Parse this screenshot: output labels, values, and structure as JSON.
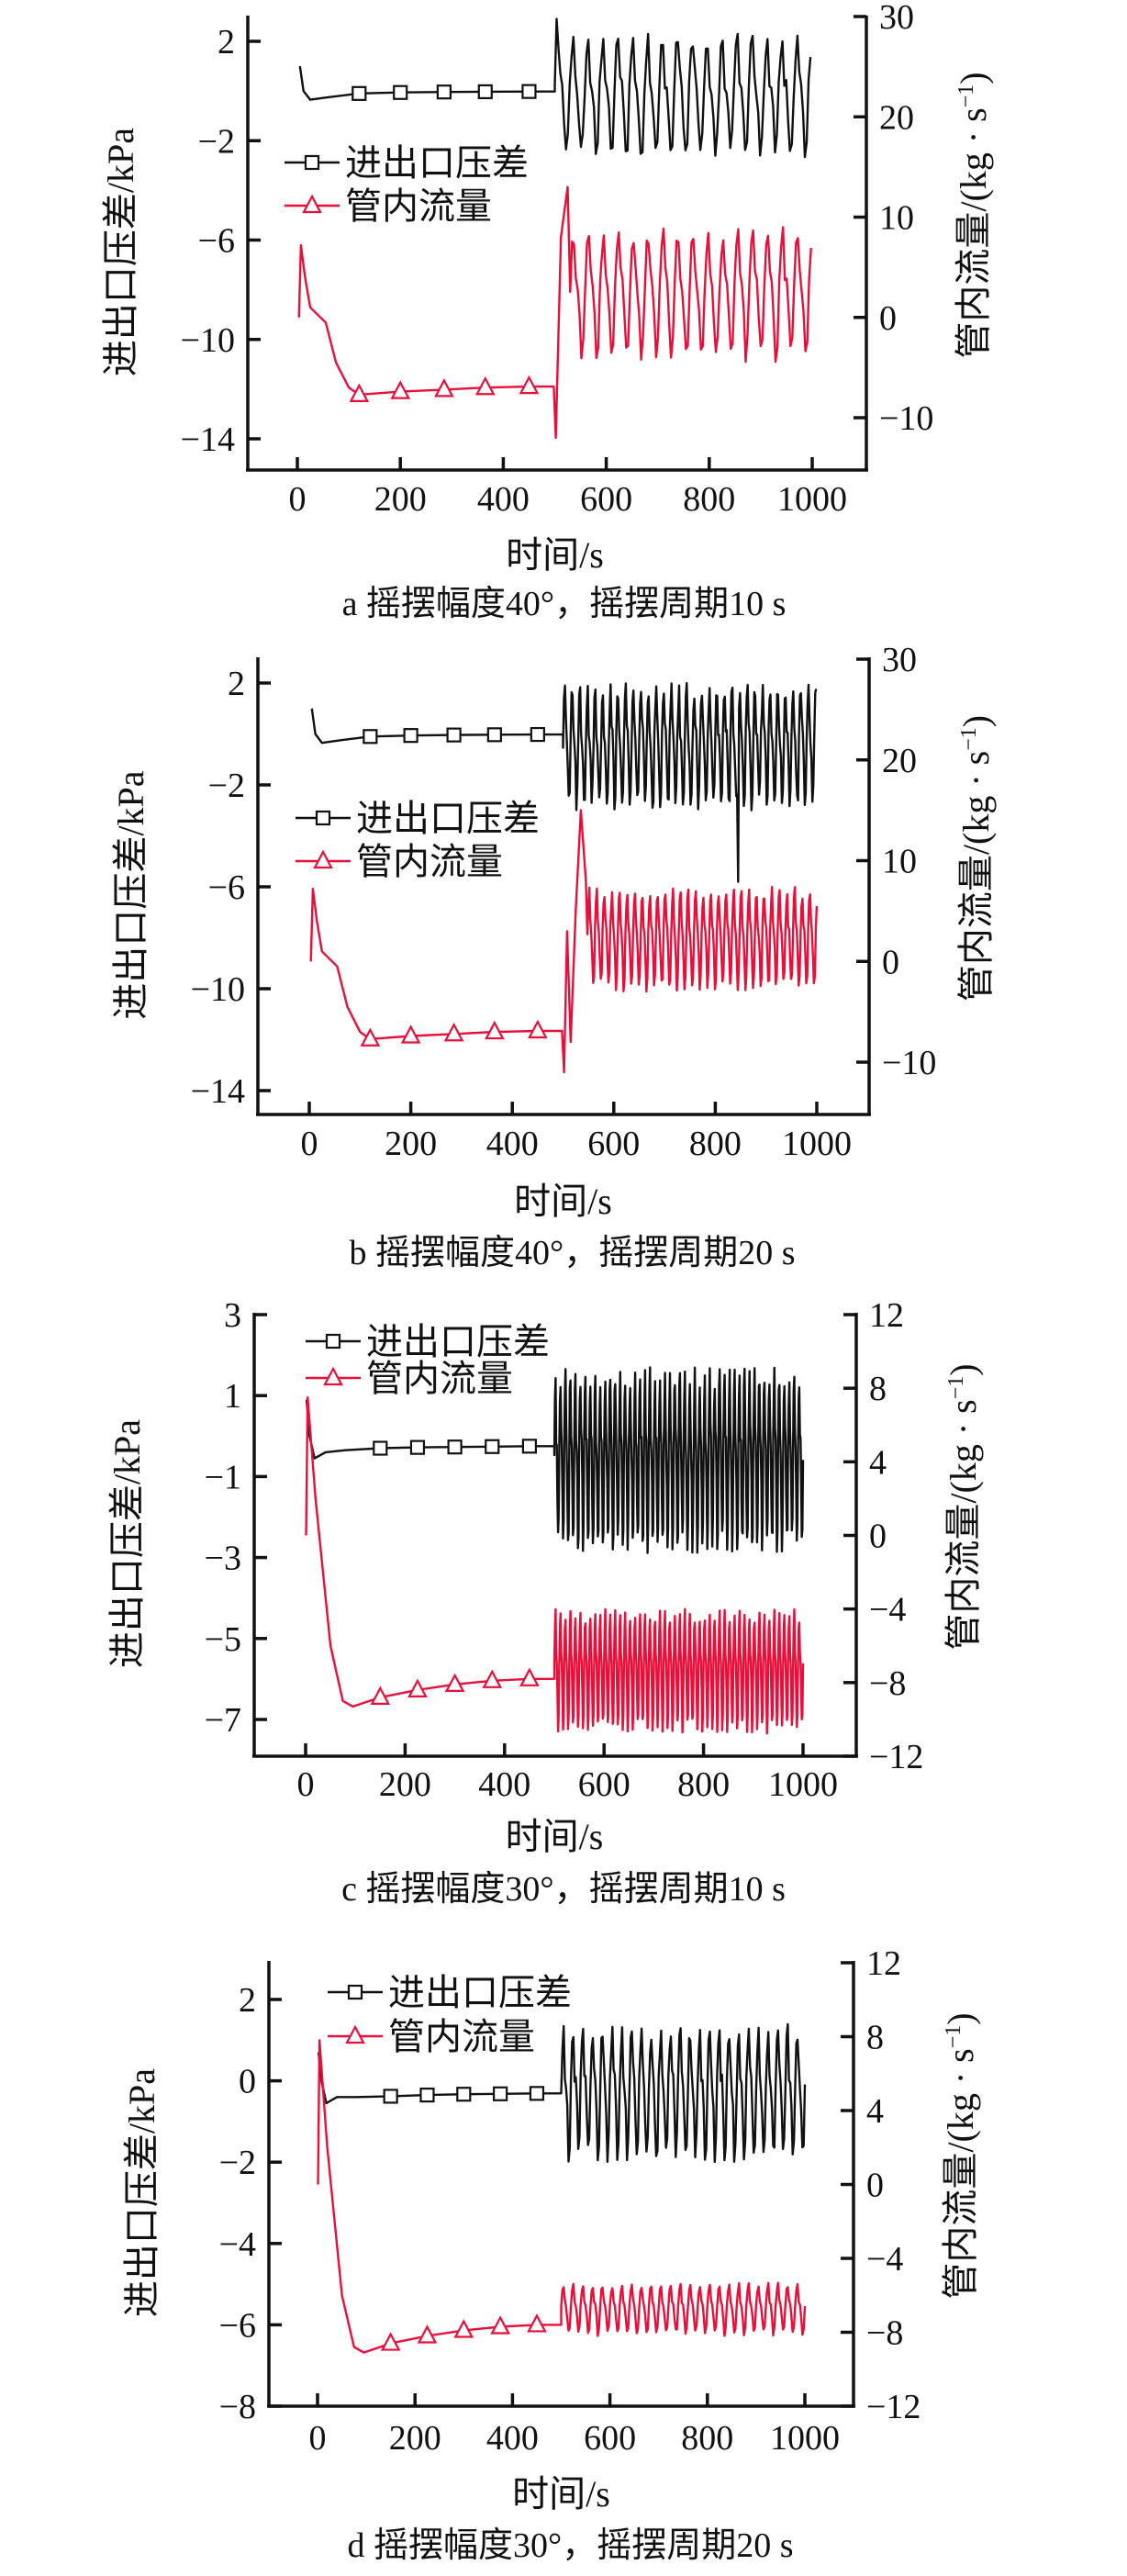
{
  "figure": {
    "series_names": {
      "pressure": "进出口压差",
      "flow": "管内流量"
    },
    "colors": {
      "pressure": "#111111",
      "flow": "#e8103a"
    },
    "left_ylabel": "进出口压差/kPa",
    "right_ylabel_main": "管内流量/(kg · s",
    "right_ylabel_sup": "−1",
    "right_ylabel_close": ")",
    "xlabel": "时间/s"
  },
  "chart_data": [
    {
      "type": "line",
      "panel": "a",
      "caption": "a  摇摆幅度40°，摇摆周期10 s",
      "xlabel": "时间/s",
      "ylabel_left": "进出口压差/kPa",
      "ylabel_right": "管内流量/(kg · s⁻¹)",
      "xlim": [
        -95,
        1110
      ],
      "x_ticks": [
        0,
        200,
        400,
        600,
        800,
        1000
      ],
      "x_tick_labels": [
        "0",
        "200",
        "400",
        "600",
        "800",
        "1000"
      ],
      "ylim_left": [
        -15,
        3
      ],
      "y_left_ticks": [
        2,
        -2,
        -6,
        -10,
        -14
      ],
      "y_left_tick_labels": [
        "2",
        "−2",
        "−6",
        "−10",
        "−14"
      ],
      "ylim_right": [
        -12,
        30
      ],
      "y_right_ticks": [
        30,
        20,
        10,
        0,
        -10
      ],
      "y_right_tick_labels": [
        "30",
        "20",
        "10",
        "0",
        "−10"
      ],
      "legend": [
        "进出口压差",
        "管内流量"
      ],
      "legend_position": "upper-left",
      "series": [
        {
          "name": "进出口压差",
          "axis": "left",
          "marker": "square",
          "steady": [
            [
              5,
              1.0
            ],
            [
              12,
              0.0
            ],
            [
              25,
              -0.35
            ],
            [
              60,
              -0.25
            ],
            [
              120,
              -0.1
            ],
            [
              200,
              -0.06
            ],
            [
              285,
              -0.04
            ],
            [
              365,
              -0.03
            ],
            [
              450,
              -0.02
            ],
            [
              500,
              -0.02
            ]
          ],
          "markers_x": [
            120,
            200,
            285,
            365,
            450
          ],
          "oscillation": {
            "start": 500,
            "end": 1000,
            "period": 29,
            "min": -2.8,
            "max": 2.3,
            "center": 0.2,
            "noise": 0.9,
            "first_peak": 2.9
          }
        },
        {
          "name": "管内流量",
          "axis": "right",
          "marker": "triangle",
          "steady": [
            [
              3,
              0.0
            ],
            [
              7,
              7.2
            ],
            [
              15,
              4.0
            ],
            [
              25,
              1.0
            ],
            [
              45,
              0.0
            ],
            [
              55,
              -0.5
            ],
            [
              75,
              -4.5
            ],
            [
              100,
              -7.0
            ],
            [
              120,
              -7.7
            ],
            [
              200,
              -7.4
            ],
            [
              285,
              -7.2
            ],
            [
              365,
              -7.0
            ],
            [
              450,
              -6.9
            ],
            [
              498,
              -6.9
            ],
            [
              502,
              -12.0
            ],
            [
              512,
              8.0
            ],
            [
              525,
              13.0
            ]
          ],
          "markers_x": [
            120,
            200,
            285,
            365,
            450
          ],
          "oscillation": {
            "start": 530,
            "end": 1000,
            "period": 29,
            "min": -4.5,
            "max": 9.0,
            "center": 3.5,
            "noise": 1.5
          }
        }
      ]
    },
    {
      "type": "line",
      "panel": "b",
      "caption": "b  摇摆幅度40°，摇摆周期20 s",
      "xlabel": "时间/s",
      "ylabel_left": "进出口压差/kPa",
      "ylabel_right": "管内流量/(kg · s⁻¹)",
      "xlim": [
        -95,
        1110
      ],
      "x_ticks": [
        0,
        200,
        400,
        600,
        800,
        1000
      ],
      "x_tick_labels": [
        "0",
        "200",
        "400",
        "600",
        "800",
        "1000"
      ],
      "ylim_left": [
        -15,
        3
      ],
      "y_left_ticks": [
        2,
        -2,
        -6,
        -10,
        -14
      ],
      "y_left_tick_labels": [
        "2",
        "−2",
        "−6",
        "−10",
        "−14"
      ],
      "ylim_right": [
        -12,
        30
      ],
      "y_right_ticks": [
        30,
        20,
        10,
        0,
        -10
      ],
      "y_right_tick_labels": [
        "30",
        "20",
        "10",
        "0",
        "−10"
      ],
      "legend": [
        "进出口压差",
        "管内流量"
      ],
      "legend_position": "upper-left",
      "series": [
        {
          "name": "进出口压差",
          "axis": "left",
          "marker": "square",
          "steady": [
            [
              5,
              1.0
            ],
            [
              12,
              0.0
            ],
            [
              25,
              -0.35
            ],
            [
              60,
              -0.25
            ],
            [
              120,
              -0.1
            ],
            [
              200,
              -0.06
            ],
            [
              285,
              -0.04
            ],
            [
              365,
              -0.03
            ],
            [
              450,
              -0.02
            ],
            [
              500,
              -0.02
            ]
          ],
          "markers_x": [
            120,
            200,
            285,
            365,
            450
          ],
          "oscillation": {
            "start": 500,
            "end": 1000,
            "period": 15,
            "min": -3.0,
            "max": 2.0,
            "center": -0.2,
            "noise": 0.8,
            "spike_t": 845,
            "spike_value": -5.8
          }
        },
        {
          "name": "管内流量",
          "axis": "right",
          "marker": "triangle",
          "steady": [
            [
              3,
              0.0
            ],
            [
              7,
              7.2
            ],
            [
              15,
              4.0
            ],
            [
              25,
              1.0
            ],
            [
              45,
              0.0
            ],
            [
              55,
              -0.5
            ],
            [
              75,
              -4.5
            ],
            [
              100,
              -7.0
            ],
            [
              120,
              -7.7
            ],
            [
              200,
              -7.4
            ],
            [
              285,
              -7.2
            ],
            [
              365,
              -7.0
            ],
            [
              450,
              -6.9
            ],
            [
              498,
              -6.9
            ],
            [
              502,
              -11.0
            ],
            [
              508,
              3.0
            ],
            [
              515,
              -8.0
            ],
            [
              525,
              5.0
            ],
            [
              535,
              15.0
            ],
            [
              545,
              8.0
            ]
          ],
          "markers_x": [
            120,
            200,
            285,
            365,
            450
          ],
          "oscillation": {
            "start": 548,
            "end": 1000,
            "period": 15,
            "min": -3.0,
            "max": 7.5,
            "center": 2.5,
            "noise": 1.0
          }
        }
      ]
    },
    {
      "type": "line",
      "panel": "c",
      "caption": "c  摇摆幅度30°，摇摆周期10 s",
      "xlabel": "时间/s",
      "ylabel_left": "进出口压差/kPa",
      "ylabel_right": "管内流量/(kg · s⁻¹)",
      "xlim": [
        -95,
        1110
      ],
      "x_ticks": [
        0,
        200,
        400,
        600,
        800,
        1000
      ],
      "x_tick_labels": [
        "0",
        "200",
        "400",
        "600",
        "800",
        "1000"
      ],
      "ylim_left": [
        -8,
        3
      ],
      "y_left_ticks": [
        3,
        1,
        -1,
        -3,
        -5,
        -7
      ],
      "y_left_tick_labels": [
        "3",
        "1",
        "−1",
        "−3",
        "−5",
        "−7"
      ],
      "ylim_right": [
        -12,
        12
      ],
      "y_right_ticks": [
        12,
        8,
        4,
        0,
        -4,
        -8,
        -12
      ],
      "y_right_tick_labels": [
        "12",
        "8",
        "4",
        "0",
        "−4",
        "−8",
        "−12"
      ],
      "legend": [
        "进出口压差",
        "管内流量"
      ],
      "legend_position": "upper-left",
      "series": [
        {
          "name": "进出口压差",
          "axis": "left",
          "marker": "square",
          "steady": [
            [
              2,
              0.9
            ],
            [
              8,
              0.0
            ],
            [
              18,
              -0.55
            ],
            [
              40,
              -0.4
            ],
            [
              80,
              -0.35
            ],
            [
              150,
              -0.3
            ],
            [
              225,
              -0.28
            ],
            [
              300,
              -0.27
            ],
            [
              375,
              -0.26
            ],
            [
              450,
              -0.25
            ],
            [
              500,
              -0.25
            ]
          ],
          "markers_x": [
            150,
            225,
            300,
            375,
            450
          ],
          "oscillation": {
            "start": 500,
            "end": 1000,
            "period": 10,
            "min": -2.9,
            "max": 1.7,
            "center": -0.3,
            "noise": 0.6
          }
        },
        {
          "name": "管内流量",
          "axis": "right",
          "marker": "triangle",
          "steady": [
            [
              1,
              0.0
            ],
            [
              4,
              7.5
            ],
            [
              20,
              2.0
            ],
            [
              50,
              -6.0
            ],
            [
              75,
              -9.0
            ],
            [
              95,
              -9.3
            ],
            [
              150,
              -8.8
            ],
            [
              225,
              -8.4
            ],
            [
              300,
              -8.1
            ],
            [
              375,
              -7.9
            ],
            [
              450,
              -7.8
            ],
            [
              500,
              -7.8
            ]
          ],
          "markers_x": [
            150,
            225,
            300,
            375,
            450
          ],
          "oscillation": {
            "start": 500,
            "end": 1000,
            "period": 10,
            "min": -10.8,
            "max": -4.0,
            "center": -7.4,
            "noise": 0.0
          }
        }
      ]
    },
    {
      "type": "line",
      "panel": "d",
      "caption": "d  摇摆幅度30°，摇摆周期20 s",
      "xlabel": "时间/s",
      "ylabel_left": "进出口压差/kPa",
      "ylabel_right": "管内流量/(kg · s⁻¹)",
      "xlim": [
        -95,
        1110
      ],
      "x_ticks": [
        0,
        200,
        400,
        600,
        800,
        1000
      ],
      "x_tick_labels": [
        "0",
        "200",
        "400",
        "600",
        "800",
        "1000"
      ],
      "ylim_left": [
        -8,
        3
      ],
      "y_left_ticks": [
        2,
        0,
        -2,
        -4,
        -6,
        -8
      ],
      "y_left_tick_labels": [
        "2",
        "0",
        "−2",
        "−4",
        "−6",
        "−8"
      ],
      "ylim_right": [
        -12,
        12
      ],
      "y_right_ticks": [
        12,
        8,
        4,
        0,
        -4,
        -8,
        -12
      ],
      "y_right_tick_labels": [
        "12",
        "8",
        "4",
        "0",
        "−4",
        "−8",
        "−12"
      ],
      "legend": [
        "进出口压差",
        "管内流量"
      ],
      "legend_position": "upper-left",
      "series": [
        {
          "name": "进出口压差",
          "axis": "left",
          "marker": "square",
          "steady": [
            [
              2,
              0.7
            ],
            [
              8,
              0.0
            ],
            [
              18,
              -0.55
            ],
            [
              40,
              -0.4
            ],
            [
              80,
              -0.4
            ],
            [
              150,
              -0.38
            ],
            [
              225,
              -0.35
            ],
            [
              300,
              -0.33
            ],
            [
              375,
              -0.32
            ],
            [
              450,
              -0.31
            ],
            [
              500,
              -0.31
            ]
          ],
          "markers_x": [
            150,
            225,
            300,
            375,
            450
          ],
          "oscillation": {
            "start": 500,
            "end": 1000,
            "period": 20,
            "min": -2.0,
            "max": 1.4,
            "center": -0.2,
            "noise": 0.5
          }
        },
        {
          "name": "管内流量",
          "axis": "right",
          "marker": "triangle",
          "steady": [
            [
              1,
              0.0
            ],
            [
              4,
              7.8
            ],
            [
              20,
              2.0
            ],
            [
              50,
              -6.0
            ],
            [
              75,
              -8.8
            ],
            [
              95,
              -9.1
            ],
            [
              150,
              -8.6
            ],
            [
              225,
              -8.2
            ],
            [
              300,
              -7.9
            ],
            [
              375,
              -7.7
            ],
            [
              450,
              -7.6
            ],
            [
              500,
              -7.6
            ]
          ],
          "markers_x": [
            150,
            225,
            300,
            375,
            450
          ],
          "oscillation": {
            "start": 500,
            "end": 1000,
            "period": 20,
            "min": -8.2,
            "max": -5.3,
            "center": -7.5,
            "noise": 0.2
          }
        }
      ]
    }
  ]
}
